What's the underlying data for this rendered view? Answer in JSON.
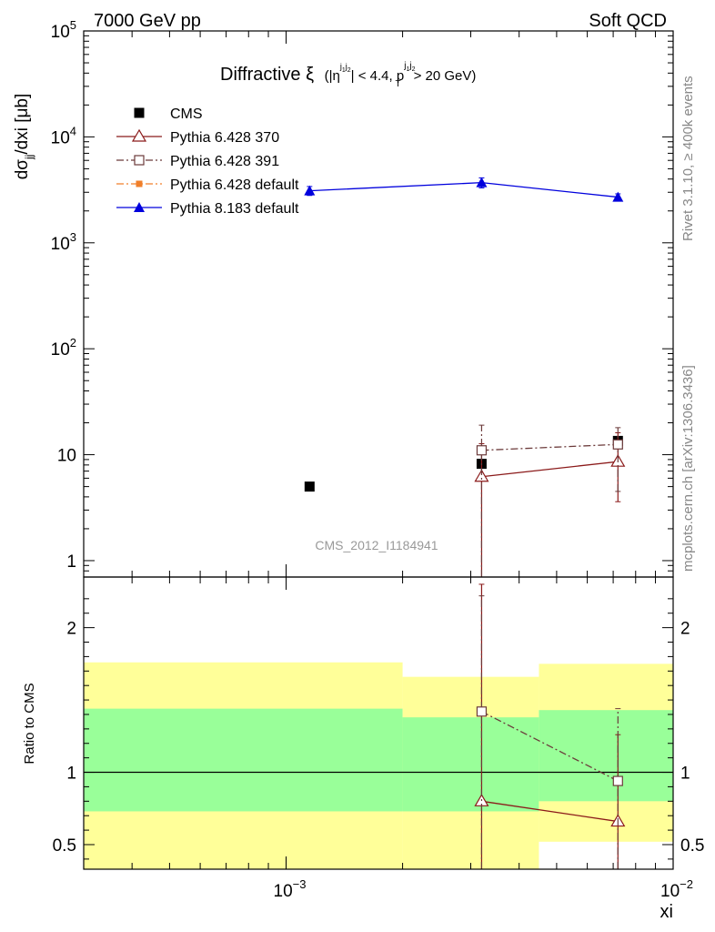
{
  "header": {
    "energy_label": "7000 GeV pp",
    "process_label": "Soft QCD"
  },
  "side_labels": {
    "rivet": "Rivet 3.1.10, ≥ 400k events",
    "mcplots": "mcplots.cern.ch [arXiv:1306.3436]"
  },
  "analysis_label": "CMS_2012_I1184941",
  "chart_data": [
    {
      "type": "scatter",
      "panel": "main",
      "title_main": "Diffractive ξ",
      "title_cut": "(|η^{j1j2}| < 4.4, p_T^{j1j2} > 20 GeV)",
      "ylabel": "dσ_jj/dxi [μb]",
      "xlabel": "",
      "x_scale": "log",
      "y_scale": "log",
      "xlim": [
        0.0003,
        0.01
      ],
      "ylim": [
        0.7,
        100000
      ],
      "y_ticks": [
        {
          "value": 1,
          "label": "1"
        },
        {
          "value": 10,
          "label": "10"
        },
        {
          "value": 100,
          "label": "10",
          "exp": "2"
        },
        {
          "value": 1000,
          "label": "10",
          "exp": "3"
        },
        {
          "value": 10000,
          "label": "10",
          "exp": "4"
        },
        {
          "value": 100000,
          "label": "10",
          "exp": "5"
        }
      ],
      "legend_position": "top-left",
      "series": [
        {
          "name": "CMS",
          "color": "#000000",
          "marker": "square-filled",
          "line": "none",
          "x": [
            0.00115,
            0.0032,
            0.0072
          ],
          "y": [
            5.0,
            8.2,
            13.5
          ]
        },
        {
          "name": "Pythia 6.428 370",
          "color": "#8b1a1a",
          "marker": "triangle-open",
          "line": "solid",
          "x": [
            0.0032,
            0.0072
          ],
          "y": [
            6.2,
            8.6
          ],
          "err_lo": [
            6.2,
            5.0
          ],
          "err_hi": [
            6.5,
            7.5
          ]
        },
        {
          "name": "Pythia 6.428 391",
          "color": "#6b3a3a",
          "marker": "square-open",
          "line": "dashdot",
          "x": [
            0.0032,
            0.0072
          ],
          "y": [
            11.0,
            12.5
          ],
          "err_lo": [
            11.0,
            8.0
          ],
          "err_hi": [
            8.0,
            5.5
          ]
        },
        {
          "name": "Pythia 6.428 default",
          "color": "#f07f2a",
          "marker": "square-filled-small",
          "line": "dashdot",
          "x": [],
          "y": []
        },
        {
          "name": "Pythia 8.183 default",
          "color": "#0000dd",
          "marker": "triangle-filled",
          "line": "solid",
          "x": [
            0.00115,
            0.0032,
            0.0072
          ],
          "y": [
            3100,
            3700,
            2700
          ],
          "err_lo": [
            300,
            400,
            200
          ],
          "err_hi": [
            300,
            400,
            200
          ]
        }
      ]
    },
    {
      "type": "scatter",
      "panel": "ratio",
      "ylabel": "Ratio to CMS",
      "xlabel": "xi",
      "x_scale": "log",
      "xlim": [
        0.0003,
        0.01
      ],
      "ylim": [
        0.33,
        2.35
      ],
      "y_ticks": [
        {
          "value": 0.5,
          "label": "0.5"
        },
        {
          "value": 1,
          "label": "1"
        },
        {
          "value": 2,
          "label": "2"
        }
      ],
      "x_ticks": [
        {
          "value": 0.001,
          "label": "10",
          "exp": "−3"
        },
        {
          "value": 0.01,
          "label": "10",
          "exp": "−2"
        }
      ],
      "bands": [
        {
          "x_lo": 0.0003,
          "x_hi": 0.002,
          "stat_lo": 0.73,
          "stat_hi": 1.44,
          "tot_lo": 0.33,
          "tot_hi": 1.76
        },
        {
          "x_lo": 0.002,
          "x_hi": 0.0045,
          "stat_lo": 0.73,
          "stat_hi": 1.38,
          "tot_lo": 0.33,
          "tot_hi": 1.66
        },
        {
          "x_lo": 0.0045,
          "x_hi": 0.01,
          "stat_lo": 0.8,
          "stat_hi": 1.43,
          "tot_lo": 0.52,
          "tot_hi": 1.75
        }
      ],
      "series": [
        {
          "name": "Pythia 6.428 370",
          "color": "#8b1a1a",
          "marker": "triangle-open",
          "line": "solid",
          "x": [
            0.0032,
            0.0072
          ],
          "y": [
            0.8,
            0.66
          ],
          "err_lo": [
            0.8,
            0.66
          ],
          "err_hi": [
            1.5,
            0.6
          ]
        },
        {
          "name": "Pythia 6.428 391",
          "color": "#6b3a3a",
          "marker": "square-open",
          "line": "dashdot",
          "x": [
            0.0032,
            0.0072
          ],
          "y": [
            1.42,
            0.94
          ],
          "err_lo": [
            1.42,
            0.94
          ],
          "err_hi": [
            0.8,
            0.5
          ]
        }
      ]
    }
  ]
}
